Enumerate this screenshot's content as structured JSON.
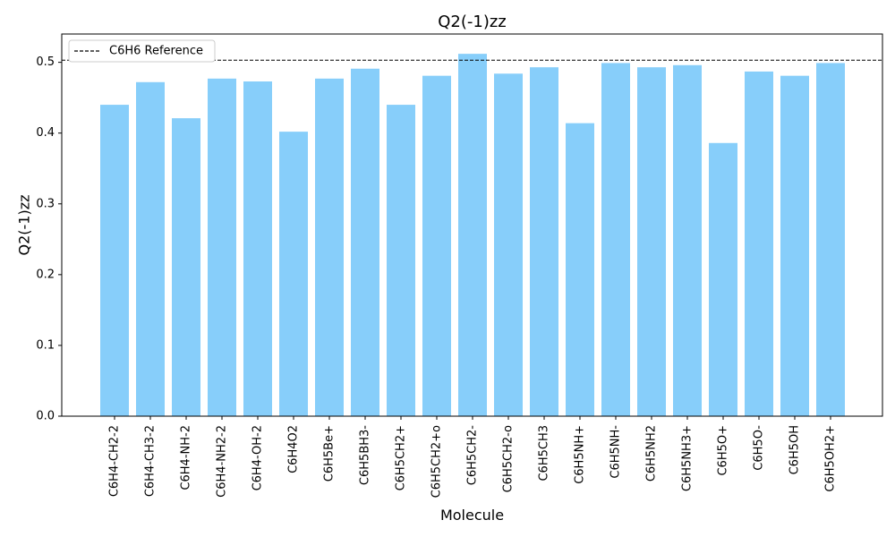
{
  "chart_data": {
    "type": "bar",
    "title": "Q2(-1)zz",
    "xlabel": "Molecule",
    "ylabel": "Q2(-1)zz",
    "ylim": [
      0,
      0.54
    ],
    "yticks": [
      "0.0",
      "0.1",
      "0.2",
      "0.3",
      "0.4",
      "0.5"
    ],
    "grid": false,
    "bar_color": "#87cefa",
    "categories": [
      "C6H4-CH2-2",
      "C6H4-CH3-2",
      "C6H4-NH-2",
      "C6H4-NH2-2",
      "C6H4-OH-2",
      "C6H4O2",
      "C6H5Be+",
      "C6H5BH3-",
      "C6H5CH2+",
      "C6H5CH2+o",
      "C6H5CH2-",
      "C6H5CH2-o",
      "C6H5CH3",
      "C6H5NH+",
      "C6H5NH-",
      "C6H5NH2",
      "C6H5NH3+",
      "C6H5O+",
      "C6H5O-",
      "C6H5OH",
      "C6H5OH2+"
    ],
    "values": [
      0.44,
      0.472,
      0.421,
      0.477,
      0.473,
      0.402,
      0.477,
      0.491,
      0.44,
      0.481,
      0.512,
      0.484,
      0.493,
      0.414,
      0.499,
      0.493,
      0.496,
      0.386,
      0.487,
      0.481,
      0.499
    ],
    "reference_line": {
      "label": "C6H6 Reference",
      "value": 0.503,
      "style": "dashed",
      "color": "#000000"
    },
    "legend_position": "top-left"
  }
}
